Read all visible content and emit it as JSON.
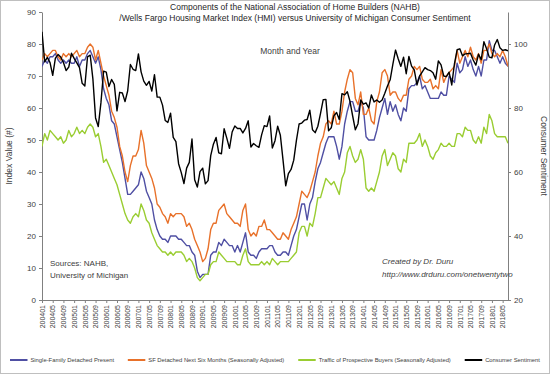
{
  "chart_data": {
    "type": "line",
    "title": "Components of the National Association of Home Builders (NAHB)",
    "subtitle": "/Wells Fargo Housing Market Index (HMI) versus University of Michigan Consumer Sentiment",
    "x_label": "Month and Year",
    "y_label": "Index Value (#)",
    "y2_label": "Consumer Sentiment",
    "annotations": [
      "Sources: NAHB,",
      "University of Michigan",
      "Created by Dr. Duru",
      "http://www.drduru.com/onetwentytwo"
    ],
    "categories": [
      "200401",
      null,
      null,
      null,
      "200405",
      null,
      null,
      null,
      "200409",
      null,
      null,
      null,
      "200501",
      null,
      null,
      null,
      "200505",
      null,
      null,
      null,
      "200509",
      null,
      null,
      null,
      "200601",
      null,
      null,
      null,
      "200605",
      null,
      null,
      null,
      "200609",
      null,
      null,
      null,
      "200701",
      null,
      null,
      null,
      "200705",
      null,
      null,
      null,
      "200709",
      null,
      null,
      null,
      "200801",
      null,
      null,
      null,
      "200805",
      null,
      null,
      null,
      "200809",
      null,
      null,
      null,
      "200901",
      null,
      null,
      null,
      "200905",
      null,
      null,
      null,
      "200909",
      null,
      null,
      null,
      "201001",
      null,
      null,
      null,
      "201005",
      null,
      null,
      null,
      "201009",
      null,
      null,
      null,
      "201101",
      null,
      null,
      null,
      "201105",
      null,
      null,
      null,
      "201109",
      null,
      null,
      null,
      "201201",
      null,
      null,
      null,
      "201205",
      null,
      null,
      null,
      "201209",
      null,
      null,
      null,
      "201301",
      null,
      null,
      null,
      "201305",
      null,
      null,
      null,
      "201309",
      null,
      null,
      null,
      "201401",
      null,
      null,
      null,
      "201405",
      null,
      null,
      null,
      "201409",
      null,
      null,
      null,
      "201501",
      null,
      null,
      null,
      "201505",
      null,
      null,
      null,
      "201509",
      null,
      null,
      null,
      "201601",
      null,
      null,
      null,
      "201605",
      null,
      null,
      null,
      "201609",
      null,
      null,
      null,
      "201701",
      null,
      null,
      null,
      "201705",
      null,
      null,
      null,
      "201709",
      null,
      null,
      null,
      "201801",
      null,
      null,
      null,
      "201805",
      null,
      null
    ],
    "ylim": [
      0,
      90
    ],
    "yticks": [
      0,
      10,
      20,
      30,
      40,
      50,
      60,
      70,
      80,
      90
    ],
    "y2lim": [
      20,
      110
    ],
    "y2ticks": [
      20,
      40,
      60,
      80,
      100
    ],
    "grid": false,
    "legend": "bottom",
    "series": [
      {
        "name": "Single-Family Detached Present",
        "color": "#4f4fa3",
        "values": [
          73,
          75,
          74,
          76,
          76,
          77,
          75,
          74,
          75,
          74,
          75,
          74,
          74,
          76,
          73,
          75,
          75,
          77,
          78,
          76,
          74,
          76,
          72,
          66,
          63,
          61,
          56,
          55,
          51,
          47,
          43,
          38,
          33,
          33,
          34,
          35,
          36,
          40,
          38,
          34,
          32,
          30,
          25,
          22,
          20,
          19,
          19,
          18,
          20,
          20,
          20,
          19,
          19,
          18,
          17,
          17,
          15,
          14,
          9,
          7,
          8,
          8,
          8,
          14,
          15,
          15,
          18,
          17,
          19,
          18,
          17,
          17,
          15,
          17,
          15,
          18,
          21,
          15,
          14,
          14,
          13,
          15,
          16,
          16,
          16,
          17,
          17,
          15,
          14,
          14,
          15,
          15,
          14,
          17,
          20,
          22,
          26,
          30,
          30,
          25,
          30,
          32,
          37,
          41,
          43,
          46,
          49,
          51,
          51,
          51,
          48,
          44,
          48,
          55,
          59,
          62,
          62,
          59,
          59,
          62,
          60,
          51,
          50,
          50,
          50,
          53,
          57,
          60,
          63,
          58,
          62,
          59,
          61,
          58,
          56,
          60,
          59,
          66,
          67,
          67,
          68,
          70,
          66,
          67,
          65,
          63,
          63,
          63,
          63,
          65,
          64,
          64,
          70,
          69,
          68,
          74,
          71,
          72,
          76,
          73,
          75,
          72,
          70,
          73,
          70,
          75,
          75,
          81,
          78,
          78,
          76,
          74,
          76,
          74,
          73
        ]
      },
      {
        "name": "SF Detached Next Six Months (Seasonally Adjusted)",
        "color": "#e8712a",
        "values": [
          75,
          77,
          76,
          77,
          78,
          78,
          76,
          75,
          77,
          76,
          77,
          76,
          77,
          78,
          76,
          77,
          77,
          79,
          80,
          79,
          75,
          78,
          74,
          70,
          67,
          64,
          59,
          57,
          54,
          48,
          45,
          40,
          37,
          42,
          45,
          45,
          47,
          53,
          49,
          42,
          40,
          38,
          35,
          30,
          29,
          27,
          26,
          24,
          27,
          26,
          27,
          27,
          27,
          26,
          23,
          24,
          22,
          19,
          17,
          15,
          12,
          13,
          16,
          22,
          24,
          24,
          28,
          29,
          30,
          27,
          26,
          25,
          24,
          24,
          23,
          28,
          30,
          22,
          20,
          21,
          20,
          23,
          23,
          25,
          22,
          22,
          21,
          20,
          19,
          19,
          21,
          20,
          19,
          22,
          24,
          26,
          30,
          34,
          33,
          32,
          34,
          37,
          40,
          45,
          49,
          51,
          55,
          56,
          55,
          59,
          55,
          55,
          59,
          65,
          69,
          72,
          71,
          63,
          61,
          65,
          58,
          58,
          60,
          56,
          55,
          62,
          65,
          71,
          72,
          70,
          64,
          65,
          65,
          63,
          62,
          64,
          64,
          69,
          70,
          73,
          72,
          73,
          69,
          68,
          68,
          69,
          66,
          67,
          66,
          72,
          68,
          70,
          71,
          72,
          73,
          78,
          74,
          76,
          78,
          76,
          79,
          76,
          75,
          77,
          74,
          78,
          78,
          80,
          77,
          76,
          77,
          76,
          78,
          76,
          73
        ]
      },
      {
        "name": "Traffic of Prospective Buyers (Seasonally Adjusted)",
        "color": "#9acd32",
        "values": [
          48,
          52,
          50,
          53,
          52,
          51,
          50,
          51,
          49,
          50,
          53,
          51,
          52,
          54,
          52,
          53,
          52,
          54,
          55,
          54,
          51,
          52,
          48,
          43,
          44,
          42,
          40,
          38,
          36,
          33,
          30,
          27,
          25,
          24,
          26,
          27,
          26,
          30,
          28,
          25,
          24,
          21,
          19,
          17,
          16,
          15,
          15,
          14,
          15,
          14,
          15,
          15,
          15,
          14,
          12,
          13,
          12,
          10,
          7,
          6,
          7,
          8,
          8,
          11,
          12,
          12,
          15,
          14,
          13,
          12,
          12,
          12,
          12,
          11,
          11,
          14,
          16,
          12,
          11,
          11,
          11,
          11,
          12,
          11,
          12,
          11,
          13,
          12,
          11,
          12,
          12,
          12,
          12,
          13,
          14,
          15,
          21,
          23,
          23,
          20,
          24,
          23,
          27,
          32,
          32,
          35,
          38,
          37,
          36,
          37,
          35,
          33,
          38,
          40,
          46,
          48,
          45,
          43,
          44,
          47,
          44,
          35,
          34,
          35,
          34,
          37,
          40,
          45,
          47,
          42,
          44,
          46,
          45,
          41,
          40,
          44,
          43,
          49,
          49,
          49,
          50,
          52,
          48,
          50,
          48,
          45,
          44,
          46,
          47,
          49,
          48,
          48,
          49,
          48,
          48,
          52,
          52,
          51,
          54,
          53,
          53,
          50,
          49,
          51,
          49,
          54,
          52,
          58,
          56,
          52,
          51,
          51,
          51,
          51,
          49
        ]
      },
      {
        "name": "Consumer Sentiment",
        "color": "#000000",
        "axis": "y2",
        "values": [
          103.8,
          94.4,
          95.8,
          94.2,
          90.2,
          95.6,
          96.7,
          95.9,
          94.2,
          91.7,
          92.8,
          97.1,
          95.5,
          94.1,
          92.6,
          87.7,
          86.9,
          96.0,
          96.5,
          89.1,
          76.9,
          74.2,
          81.6,
          91.5,
          91.2,
          86.7,
          88.9,
          87.4,
          79.1,
          84.9,
          84.7,
          82.0,
          85.4,
          93.6,
          92.1,
          91.7,
          96.9,
          91.3,
          88.4,
          87.1,
          88.3,
          85.3,
          90.4,
          83.4,
          83.4,
          80.9,
          76.1,
          75.5,
          78.4,
          70.8,
          69.5,
          62.6,
          59.8,
          56.4,
          61.2,
          63.0,
          70.3,
          57.6,
          55.3,
          60.1,
          61.2,
          56.3,
          57.3,
          65.1,
          68.7,
          70.8,
          66.0,
          65.7,
          73.5,
          70.6,
          67.4,
          72.5,
          74.4,
          73.6,
          73.6,
          72.2,
          73.6,
          76.0,
          67.8,
          68.9,
          68.2,
          67.7,
          71.6,
          74.5,
          74.2,
          77.5,
          67.5,
          69.8,
          74.3,
          71.5,
          63.7,
          55.7,
          59.5,
          60.8,
          63.7,
          69.9,
          75.0,
          75.3,
          76.2,
          76.4,
          79.3,
          73.2,
          72.3,
          74.3,
          78.3,
          82.6,
          82.7,
          72.9,
          73.8,
          77.6,
          78.6,
          76.4,
          84.5,
          84.1,
          85.1,
          82.1,
          77.5,
          73.2,
          75.1,
          82.5,
          81.2,
          81.6,
          80.0,
          84.1,
          81.9,
          82.5,
          81.8,
          82.5,
          84.6,
          86.9,
          88.8,
          93.6,
          98.1,
          95.4,
          93.0,
          95.9,
          90.7,
          96.1,
          93.1,
          91.9,
          87.2,
          90.0,
          91.3,
          92.6,
          92.0,
          91.7,
          91.0,
          89.0,
          94.7,
          93.5,
          90.0,
          89.8,
          91.2,
          87.2,
          93.8,
          98.2,
          98.5,
          96.3,
          96.9,
          97.0,
          97.1,
          95.0,
          93.4,
          96.8,
          95.1,
          100.7,
          98.5,
          95.9,
          95.7,
          99.7,
          101.4,
          98.8,
          98.0,
          98.2,
          97.9
        ]
      }
    ]
  }
}
